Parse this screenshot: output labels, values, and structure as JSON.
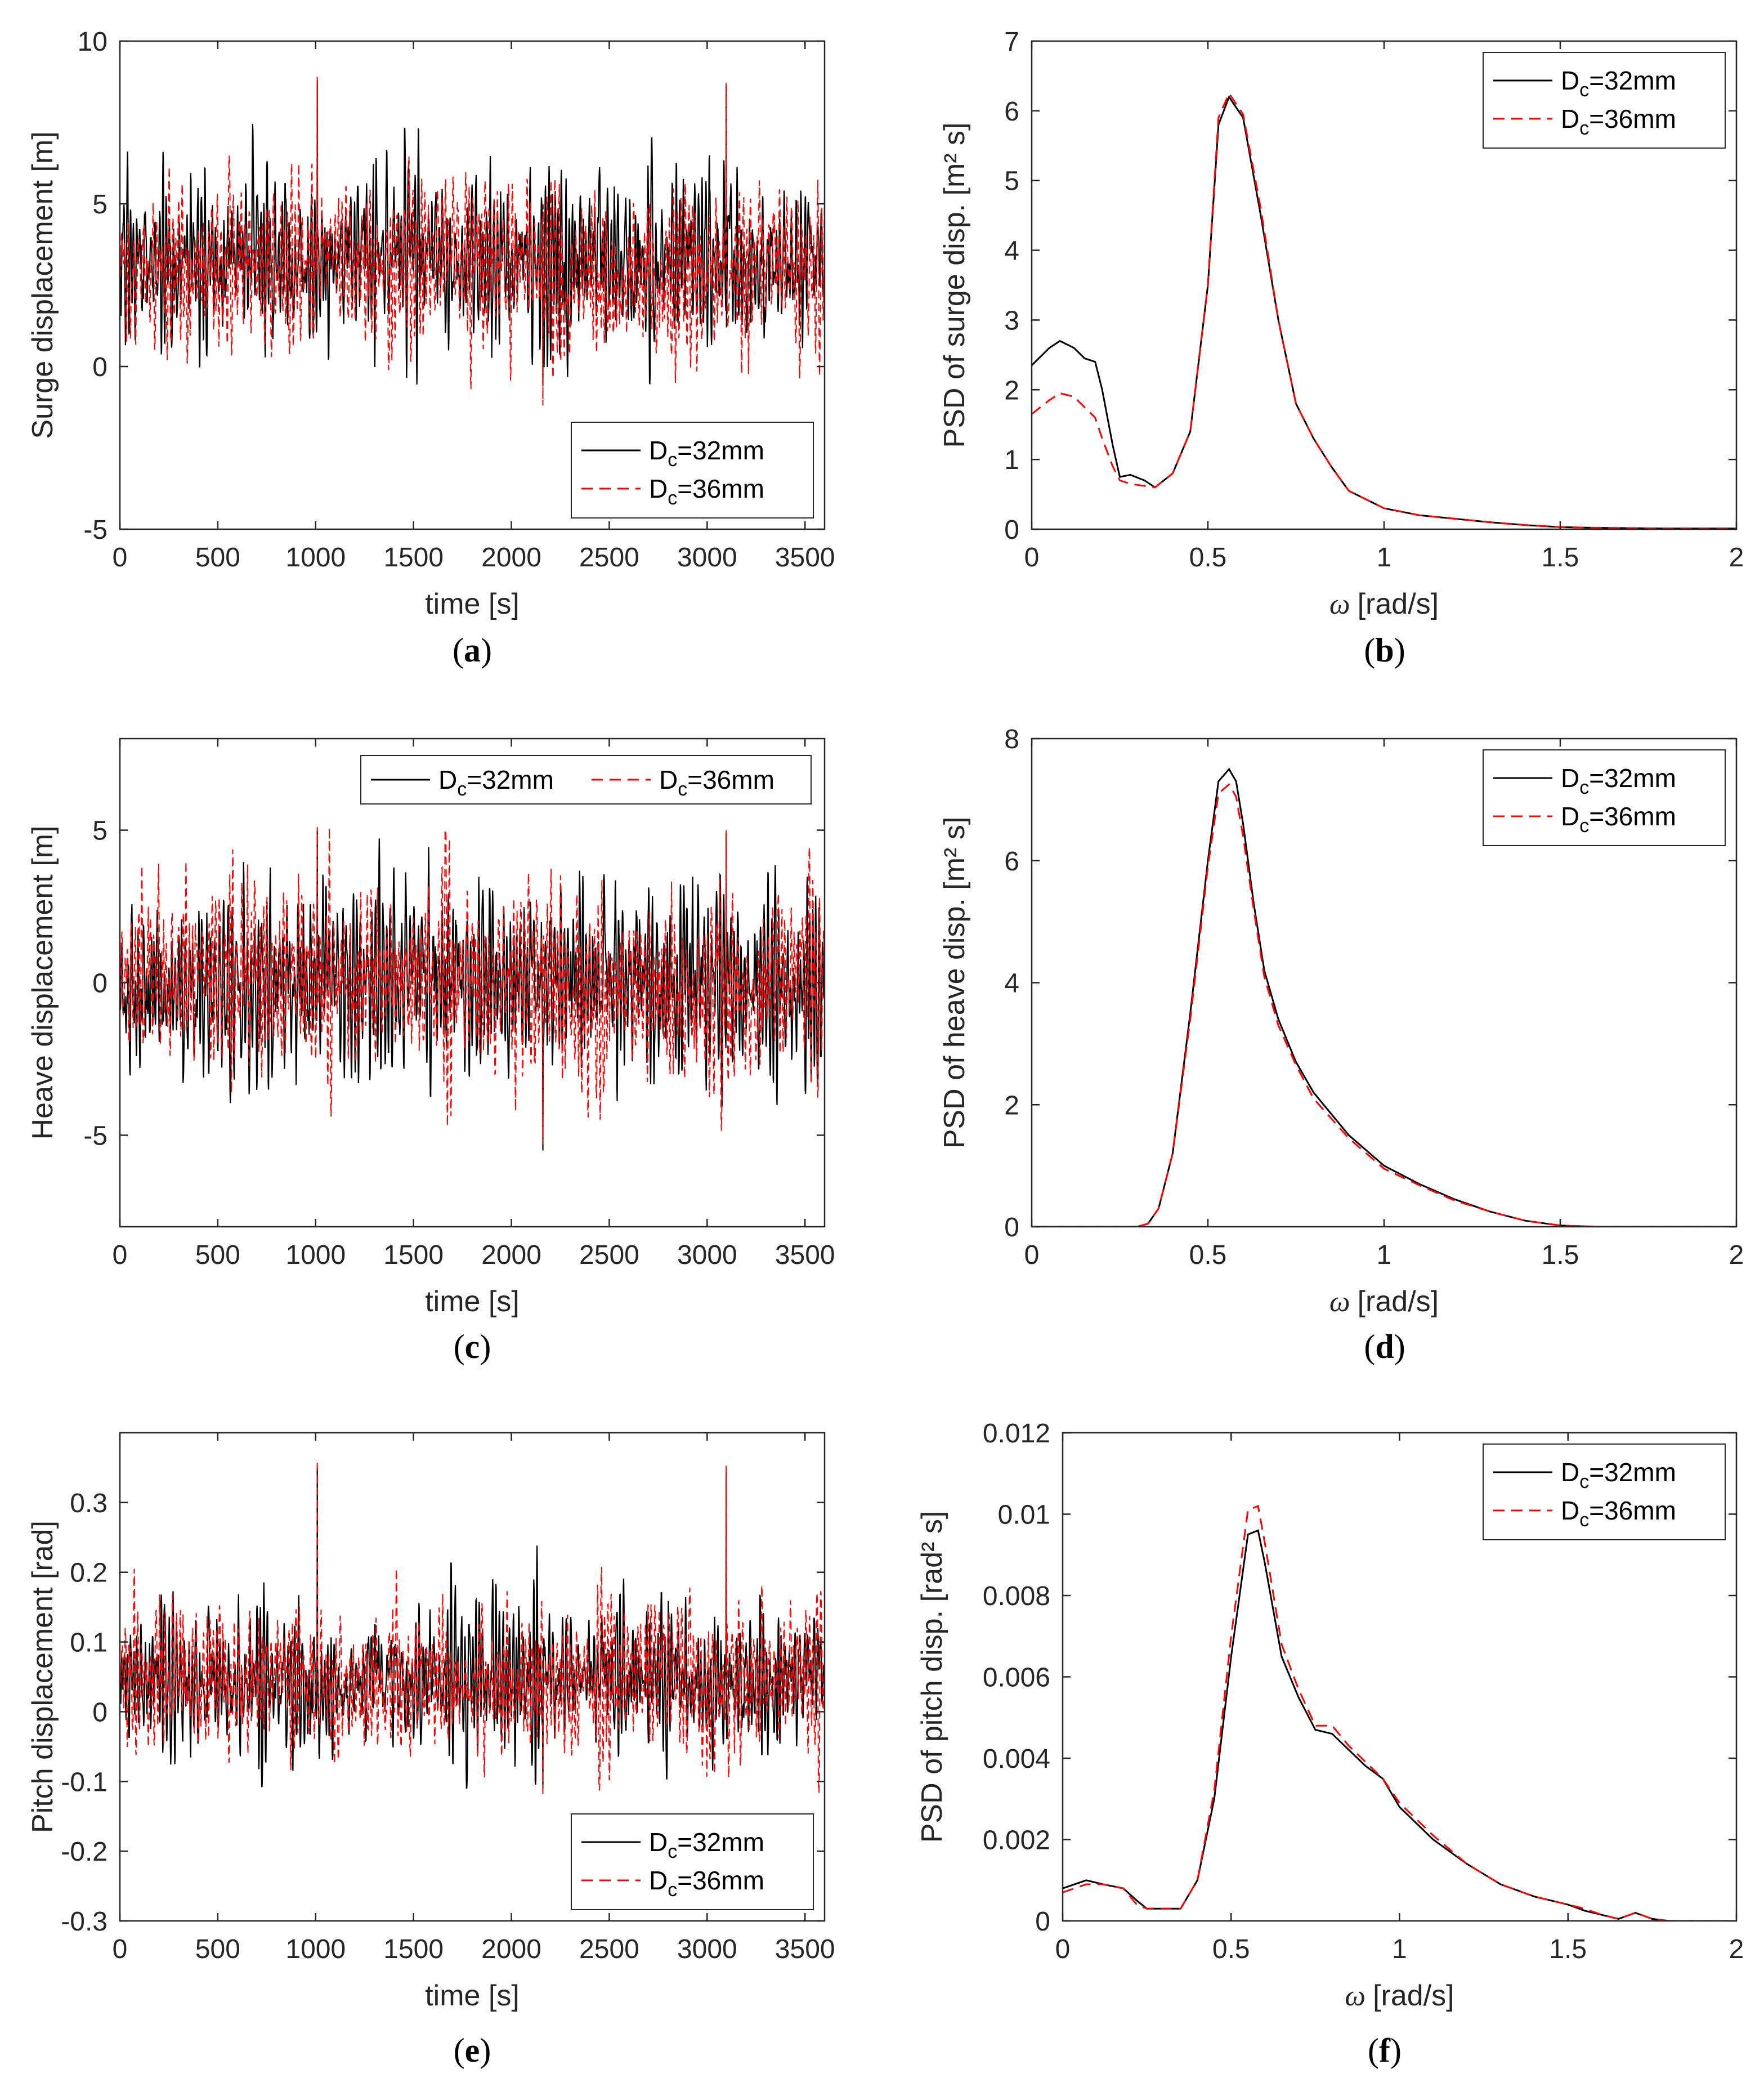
{
  "colors": {
    "series1": "#000000",
    "series2": "#ff0000",
    "axis": "#262626"
  },
  "legend": {
    "series1": "=32mm",
    "series2": "=36mm",
    "symbol": "D",
    "subscript": "c"
  },
  "chart_data": [
    {
      "id": "a",
      "type": "line",
      "caption_letter": "a",
      "xlabel": "time [s]",
      "ylabel": "Surge displacement [m]",
      "xlim": [
        0,
        3600
      ],
      "ylim": [
        -5,
        10
      ],
      "xticks": [
        "0",
        "500",
        "1000",
        "1500",
        "2000",
        "2500",
        "3000",
        "3500"
      ],
      "yticks": [
        "-5",
        "0",
        "5",
        "10"
      ],
      "legend_location": "bottom-right",
      "series": [
        {
          "name": "Dc=32mm",
          "mean": 3.3,
          "std": 1.25,
          "max": 8.8,
          "min": -0.6,
          "style": "solid"
        },
        {
          "name": "Dc=36mm",
          "mean": 3.0,
          "std": 1.25,
          "max": 8.9,
          "min": -1.2,
          "style": "dashed"
        }
      ]
    },
    {
      "id": "b",
      "type": "line",
      "caption_letter": "b",
      "xlabel": "[rad/s]",
      "xsymbol": "ω",
      "ylabel": "PSD of surge disp. [m² s]",
      "xlim": [
        0,
        2
      ],
      "ylim": [
        0,
        7
      ],
      "xticks": [
        "0",
        "0.5",
        "1",
        "1.5",
        "2"
      ],
      "yticks": [
        "0",
        "1",
        "2",
        "3",
        "4",
        "5",
        "6",
        "7"
      ],
      "legend_location": "top-right",
      "series": [
        {
          "name": "Dc=32mm",
          "style": "solid",
          "x": [
            0,
            0.05,
            0.08,
            0.12,
            0.15,
            0.18,
            0.2,
            0.23,
            0.25,
            0.28,
            0.32,
            0.35,
            0.4,
            0.45,
            0.5,
            0.53,
            0.56,
            0.6,
            0.65,
            0.7,
            0.75,
            0.8,
            0.85,
            0.9,
            1.0,
            1.1,
            1.2,
            1.3,
            1.4,
            1.5,
            1.6,
            1.8,
            2.0
          ],
          "y": [
            2.35,
            2.6,
            2.7,
            2.6,
            2.45,
            2.4,
            2.0,
            1.2,
            0.75,
            0.78,
            0.7,
            0.6,
            0.8,
            1.4,
            3.5,
            5.8,
            6.2,
            5.9,
            4.5,
            3.0,
            1.8,
            1.3,
            0.9,
            0.55,
            0.3,
            0.2,
            0.15,
            0.1,
            0.06,
            0.03,
            0.02,
            0.01,
            0.01
          ]
        },
        {
          "name": "Dc=36mm",
          "style": "dashed",
          "x": [
            0,
            0.05,
            0.08,
            0.12,
            0.15,
            0.18,
            0.2,
            0.23,
            0.25,
            0.28,
            0.32,
            0.35,
            0.4,
            0.45,
            0.5,
            0.53,
            0.56,
            0.6,
            0.65,
            0.7,
            0.75,
            0.8,
            0.85,
            0.9,
            1.0,
            1.1,
            1.2,
            1.3,
            1.4,
            1.5,
            1.6,
            1.8,
            2.0
          ],
          "y": [
            1.65,
            1.85,
            1.95,
            1.9,
            1.75,
            1.6,
            1.3,
            0.9,
            0.7,
            0.65,
            0.62,
            0.6,
            0.8,
            1.4,
            3.5,
            5.9,
            6.25,
            5.95,
            4.6,
            3.0,
            1.8,
            1.3,
            0.9,
            0.55,
            0.3,
            0.2,
            0.15,
            0.1,
            0.06,
            0.03,
            0.02,
            0.01,
            0.01
          ]
        }
      ]
    },
    {
      "id": "c",
      "type": "line",
      "caption_letter": "c",
      "xlabel": "time [s]",
      "ylabel": "Heave displacement [m]",
      "xlim": [
        0,
        3600
      ],
      "ylim": [
        -8,
        8
      ],
      "xticks": [
        "0",
        "500",
        "1000",
        "1500",
        "2000",
        "2500",
        "3000",
        "3500"
      ],
      "yticks": [
        "-5",
        "0",
        "5"
      ],
      "ytick_values": [
        -5,
        0,
        5
      ],
      "legend_location": "top-horizontal",
      "series": [
        {
          "name": "Dc=32mm",
          "mean": 0.0,
          "std": 1.5,
          "max": 5.0,
          "min": -5.5,
          "style": "solid"
        },
        {
          "name": "Dc=36mm",
          "mean": 0.0,
          "std": 1.5,
          "max": 5.1,
          "min": -5.3,
          "style": "dashed"
        }
      ]
    },
    {
      "id": "d",
      "type": "line",
      "caption_letter": "d",
      "xlabel": "[rad/s]",
      "xsymbol": "ω",
      "ylabel": "PSD of heave disp. [m² s]",
      "xlim": [
        0,
        2
      ],
      "ylim": [
        0,
        8
      ],
      "xticks": [
        "0",
        "0.5",
        "1",
        "1.5",
        "2"
      ],
      "yticks": [
        "0",
        "2",
        "4",
        "6",
        "8"
      ],
      "legend_location": "top-right",
      "series": [
        {
          "name": "Dc=32mm",
          "style": "solid",
          "x": [
            0,
            0.2,
            0.3,
            0.33,
            0.36,
            0.4,
            0.45,
            0.5,
            0.53,
            0.56,
            0.58,
            0.6,
            0.63,
            0.66,
            0.7,
            0.75,
            0.8,
            0.9,
            1.0,
            1.1,
            1.2,
            1.3,
            1.4,
            1.5,
            1.6,
            1.8,
            2.0
          ],
          "y": [
            0,
            0,
            0,
            0.05,
            0.3,
            1.2,
            3.5,
            6.0,
            7.3,
            7.5,
            7.3,
            6.6,
            5.3,
            4.2,
            3.4,
            2.7,
            2.2,
            1.5,
            1.0,
            0.7,
            0.45,
            0.25,
            0.1,
            0.02,
            0,
            0,
            0
          ]
        },
        {
          "name": "Dc=36mm",
          "style": "dashed",
          "x": [
            0,
            0.2,
            0.3,
            0.33,
            0.36,
            0.4,
            0.45,
            0.5,
            0.53,
            0.56,
            0.58,
            0.6,
            0.63,
            0.66,
            0.7,
            0.75,
            0.8,
            0.9,
            1.0,
            1.1,
            1.2,
            1.3,
            1.4,
            1.5,
            1.6,
            1.8,
            2.0
          ],
          "y": [
            0,
            0,
            0,
            0.05,
            0.3,
            1.2,
            3.4,
            5.9,
            7.1,
            7.25,
            7.05,
            6.4,
            5.2,
            4.1,
            3.3,
            2.65,
            2.1,
            1.45,
            0.95,
            0.68,
            0.43,
            0.25,
            0.1,
            0.02,
            0,
            0,
            0
          ]
        }
      ]
    },
    {
      "id": "e",
      "type": "line",
      "caption_letter": "e",
      "xlabel": "time [s]",
      "ylabel": "Pitch displacement [rad]",
      "xlim": [
        0,
        3600
      ],
      "ylim": [
        -0.3,
        0.4
      ],
      "xticks": [
        "0",
        "500",
        "1000",
        "1500",
        "2000",
        "2500",
        "3000",
        "3500"
      ],
      "yticks": [
        "-0.3",
        "-0.2",
        "-0.1",
        "0",
        "0.1",
        "0.2",
        "0.3"
      ],
      "legend_location": "bottom-right",
      "series": [
        {
          "name": "Dc=32mm",
          "mean": 0.045,
          "std": 0.05,
          "max": 0.35,
          "min": -0.11,
          "style": "solid"
        },
        {
          "name": "Dc=36mm",
          "mean": 0.045,
          "std": 0.052,
          "max": 0.36,
          "min": -0.12,
          "style": "dashed"
        }
      ]
    },
    {
      "id": "f",
      "type": "line",
      "caption_letter": "f",
      "xlabel": "[rad/s]",
      "xsymbol": "ω",
      "ylabel": "PSD of pitch disp. [rad² s]",
      "xlim": [
        0,
        2
      ],
      "ylim": [
        0,
        0.012
      ],
      "xticks": [
        "0",
        "0.5",
        "1",
        "1.5",
        "2"
      ],
      "yticks": [
        "0",
        "0.002",
        "0.004",
        "0.006",
        "0.008",
        "0.01",
        "0.012"
      ],
      "legend_location": "top-right",
      "series": [
        {
          "name": "Dc=32mm",
          "style": "solid",
          "x": [
            0,
            0.07,
            0.12,
            0.18,
            0.22,
            0.25,
            0.28,
            0.35,
            0.4,
            0.45,
            0.5,
            0.55,
            0.58,
            0.6,
            0.65,
            0.7,
            0.75,
            0.8,
            0.85,
            0.9,
            0.95,
            1.0,
            1.1,
            1.2,
            1.3,
            1.4,
            1.5,
            1.55,
            1.6,
            1.65,
            1.7,
            1.75,
            1.8,
            2.0
          ],
          "y": [
            0.0008,
            0.001,
            0.0009,
            0.0008,
            0.0005,
            0.0003,
            0.0003,
            0.0003,
            0.001,
            0.003,
            0.0065,
            0.0095,
            0.0096,
            0.0088,
            0.0065,
            0.0055,
            0.0047,
            0.0046,
            0.0042,
            0.0038,
            0.0035,
            0.0028,
            0.002,
            0.0014,
            0.0009,
            0.0006,
            0.0004,
            0.00025,
            0.00015,
            5e-05,
            0.0002,
            5e-05,
            0.0,
            0.0
          ]
        },
        {
          "name": "Dc=36mm",
          "style": "dashed",
          "x": [
            0,
            0.07,
            0.12,
            0.18,
            0.22,
            0.25,
            0.28,
            0.35,
            0.4,
            0.45,
            0.5,
            0.55,
            0.58,
            0.6,
            0.65,
            0.7,
            0.75,
            0.8,
            0.85,
            0.9,
            0.95,
            1.0,
            1.1,
            1.2,
            1.3,
            1.4,
            1.5,
            1.55,
            1.6,
            1.65,
            1.7,
            1.75,
            1.8,
            2.0
          ],
          "y": [
            0.0007,
            0.0009,
            0.0009,
            0.0008,
            0.0004,
            0.0003,
            0.0003,
            0.0003,
            0.001,
            0.0032,
            0.007,
            0.0101,
            0.0102,
            0.0093,
            0.0068,
            0.0057,
            0.0048,
            0.0048,
            0.0043,
            0.0039,
            0.0035,
            0.0029,
            0.0021,
            0.0014,
            0.0009,
            0.0006,
            0.0004,
            0.0003,
            0.00015,
            5e-05,
            0.0002,
            5e-05,
            0.0,
            0.0
          ]
        }
      ]
    }
  ]
}
